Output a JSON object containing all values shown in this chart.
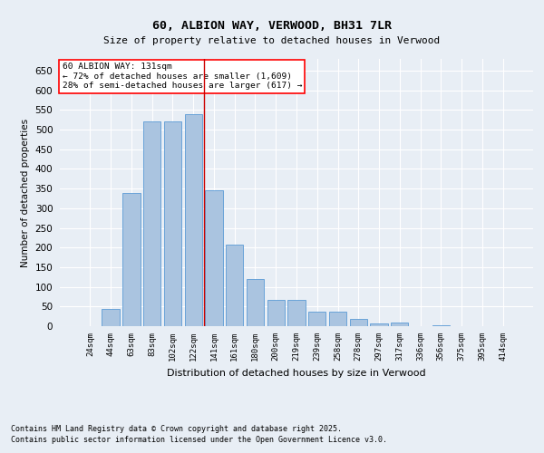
{
  "title": "60, ALBION WAY, VERWOOD, BH31 7LR",
  "subtitle": "Size of property relative to detached houses in Verwood",
  "xlabel": "Distribution of detached houses by size in Verwood",
  "ylabel": "Number of detached properties",
  "categories": [
    "24sqm",
    "44sqm",
    "63sqm",
    "83sqm",
    "102sqm",
    "122sqm",
    "141sqm",
    "161sqm",
    "180sqm",
    "200sqm",
    "219sqm",
    "239sqm",
    "258sqm",
    "278sqm",
    "297sqm",
    "317sqm",
    "336sqm",
    "356sqm",
    "375sqm",
    "395sqm",
    "414sqm"
  ],
  "values": [
    0,
    44,
    338,
    521,
    521,
    540,
    345,
    207,
    119,
    68,
    68,
    38,
    38,
    18,
    7,
    10,
    0,
    2,
    0,
    0,
    1
  ],
  "bar_color": "#aac4e0",
  "bar_edge_color": "#5b9bd5",
  "vline_color": "#cc0000",
  "vline_position": 5.5,
  "background_color": "#e8eef5",
  "grid_color": "#ffffff",
  "property_label": "60 ALBION WAY: 131sqm",
  "annotation_line1": "← 72% of detached houses are smaller (1,609)",
  "annotation_line2": "28% of semi-detached houses are larger (617) →",
  "footnote_line1": "Contains HM Land Registry data © Crown copyright and database right 2025.",
  "footnote_line2": "Contains public sector information licensed under the Open Government Licence v3.0.",
  "ylim": [
    0,
    680
  ],
  "yticks": [
    0,
    50,
    100,
    150,
    200,
    250,
    300,
    350,
    400,
    450,
    500,
    550,
    600,
    650
  ]
}
